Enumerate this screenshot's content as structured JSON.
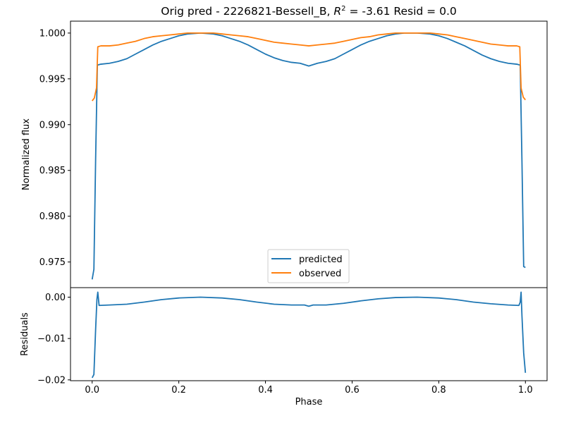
{
  "chart_data": {
    "type": "line",
    "title": "Orig pred - 2226821-Bessell_B, R² = -3.61 Resid = 0.0",
    "title_parts": {
      "prefix": "Orig pred - 2226821-Bessell_B, ",
      "r": "R",
      "sup": "2",
      "suffix": " = -3.61 Resid = 0.0"
    },
    "xlabel": "Phase",
    "xlim": [
      -0.05,
      1.05
    ],
    "x_ticks": [
      "0.0",
      "0.2",
      "0.4",
      "0.6",
      "0.8",
      "1.0"
    ],
    "grid": false,
    "legend_position": "lower center",
    "panels": [
      {
        "name": "flux",
        "ylabel": "Normalized flux",
        "ylim": [
          0.9722,
          1.0013
        ],
        "y_ticks": [
          "0.975",
          "0.980",
          "0.985",
          "0.990",
          "0.995",
          "1.000"
        ],
        "series": [
          {
            "name": "predicted",
            "color": "#1f77b4",
            "points": [
              [
                0.0,
                0.9731
              ],
              [
                0.004,
                0.9742
              ],
              [
                0.008,
                0.9862
              ],
              [
                0.012,
                0.9965
              ],
              [
                0.02,
                0.9966
              ],
              [
                0.04,
                0.9967
              ],
              [
                0.06,
                0.9969
              ],
              [
                0.08,
                0.9972
              ],
              [
                0.1,
                0.9977
              ],
              [
                0.12,
                0.9982
              ],
              [
                0.14,
                0.9987
              ],
              [
                0.16,
                0.9991
              ],
              [
                0.18,
                0.9994
              ],
              [
                0.2,
                0.9997
              ],
              [
                0.22,
                0.9999
              ],
              [
                0.25,
                1.0
              ],
              [
                0.28,
                0.9999
              ],
              [
                0.3,
                0.9997
              ],
              [
                0.32,
                0.9994
              ],
              [
                0.34,
                0.9991
              ],
              [
                0.36,
                0.9987
              ],
              [
                0.38,
                0.9982
              ],
              [
                0.4,
                0.9977
              ],
              [
                0.42,
                0.9973
              ],
              [
                0.44,
                0.997
              ],
              [
                0.46,
                0.9968
              ],
              [
                0.48,
                0.9967
              ],
              [
                0.5,
                0.9964
              ],
              [
                0.52,
                0.9967
              ],
              [
                0.54,
                0.9969
              ],
              [
                0.56,
                0.9972
              ],
              [
                0.58,
                0.9977
              ],
              [
                0.6,
                0.9982
              ],
              [
                0.62,
                0.9987
              ],
              [
                0.64,
                0.9991
              ],
              [
                0.66,
                0.9994
              ],
              [
                0.68,
                0.9997
              ],
              [
                0.7,
                0.9999
              ],
              [
                0.72,
                1.0
              ],
              [
                0.75,
                1.0
              ],
              [
                0.78,
                0.9999
              ],
              [
                0.8,
                0.9997
              ],
              [
                0.82,
                0.9994
              ],
              [
                0.84,
                0.999
              ],
              [
                0.86,
                0.9986
              ],
              [
                0.88,
                0.9981
              ],
              [
                0.9,
                0.9976
              ],
              [
                0.92,
                0.9972
              ],
              [
                0.94,
                0.9969
              ],
              [
                0.96,
                0.9967
              ],
              [
                0.98,
                0.9966
              ],
              [
                0.988,
                0.9965
              ],
              [
                0.992,
                0.986
              ],
              [
                0.996,
                0.9745
              ],
              [
                1.0,
                0.9744
              ]
            ]
          },
          {
            "name": "observed",
            "color": "#ff7f0e",
            "points": [
              [
                0.0,
                0.9926
              ],
              [
                0.005,
                0.9929
              ],
              [
                0.01,
                0.994
              ],
              [
                0.013,
                0.9985
              ],
              [
                0.02,
                0.9986
              ],
              [
                0.04,
                0.9986
              ],
              [
                0.06,
                0.9987
              ],
              [
                0.08,
                0.9989
              ],
              [
                0.1,
                0.9991
              ],
              [
                0.12,
                0.9994
              ],
              [
                0.14,
                0.9996
              ],
              [
                0.16,
                0.9997
              ],
              [
                0.18,
                0.9998
              ],
              [
                0.2,
                0.9999
              ],
              [
                0.22,
                1.0
              ],
              [
                0.25,
                1.0
              ],
              [
                0.28,
                1.0
              ],
              [
                0.3,
                0.9999
              ],
              [
                0.32,
                0.9998
              ],
              [
                0.34,
                0.9997
              ],
              [
                0.36,
                0.9996
              ],
              [
                0.38,
                0.9994
              ],
              [
                0.4,
                0.9992
              ],
              [
                0.42,
                0.999
              ],
              [
                0.44,
                0.9989
              ],
              [
                0.46,
                0.9988
              ],
              [
                0.48,
                0.9987
              ],
              [
                0.5,
                0.9986
              ],
              [
                0.52,
                0.9987
              ],
              [
                0.54,
                0.9988
              ],
              [
                0.56,
                0.9989
              ],
              [
                0.58,
                0.9991
              ],
              [
                0.6,
                0.9993
              ],
              [
                0.62,
                0.9995
              ],
              [
                0.64,
                0.9996
              ],
              [
                0.66,
                0.9998
              ],
              [
                0.68,
                0.9999
              ],
              [
                0.7,
                1.0
              ],
              [
                0.72,
                1.0
              ],
              [
                0.75,
                1.0
              ],
              [
                0.78,
                1.0
              ],
              [
                0.8,
                0.9999
              ],
              [
                0.82,
                0.9998
              ],
              [
                0.84,
                0.9996
              ],
              [
                0.86,
                0.9994
              ],
              [
                0.88,
                0.9992
              ],
              [
                0.9,
                0.999
              ],
              [
                0.92,
                0.9988
              ],
              [
                0.94,
                0.9987
              ],
              [
                0.96,
                0.9986
              ],
              [
                0.98,
                0.9986
              ],
              [
                0.987,
                0.9985
              ],
              [
                0.99,
                0.994
              ],
              [
                0.995,
                0.993
              ],
              [
                1.0,
                0.9927
              ]
            ]
          }
        ]
      },
      {
        "name": "residuals",
        "ylabel": "Residuals",
        "ylim": [
          -0.0202,
          0.0023
        ],
        "y_ticks": [
          "0.00",
          "−0.01",
          "−0.02"
        ],
        "y_tick_values": [
          0.0,
          -0.01,
          -0.02
        ],
        "series": [
          {
            "name": "",
            "color": "#1f77b4",
            "points": [
              [
                0.0,
                -0.0195
              ],
              [
                0.004,
                -0.0187
              ],
              [
                0.008,
                -0.0078
              ],
              [
                0.011,
                -0.0005
              ],
              [
                0.013,
                0.0012
              ],
              [
                0.016,
                -0.002
              ],
              [
                0.04,
                -0.0019
              ],
              [
                0.08,
                -0.0017
              ],
              [
                0.12,
                -0.0012
              ],
              [
                0.16,
                -0.0006
              ],
              [
                0.2,
                -0.0002
              ],
              [
                0.25,
                0.0
              ],
              [
                0.3,
                -0.0002
              ],
              [
                0.34,
                -0.0006
              ],
              [
                0.38,
                -0.0012
              ],
              [
                0.42,
                -0.0017
              ],
              [
                0.46,
                -0.0019
              ],
              [
                0.49,
                -0.0019
              ],
              [
                0.5,
                -0.0022
              ],
              [
                0.51,
                -0.0019
              ],
              [
                0.54,
                -0.0019
              ],
              [
                0.58,
                -0.0015
              ],
              [
                0.62,
                -0.0009
              ],
              [
                0.66,
                -0.0004
              ],
              [
                0.7,
                -0.0001
              ],
              [
                0.75,
                0.0
              ],
              [
                0.8,
                -0.0002
              ],
              [
                0.84,
                -0.0006
              ],
              [
                0.88,
                -0.0012
              ],
              [
                0.92,
                -0.0016
              ],
              [
                0.96,
                -0.0019
              ],
              [
                0.985,
                -0.002
              ],
              [
                0.988,
                -0.0012
              ],
              [
                0.99,
                0.0012
              ],
              [
                0.992,
                -0.0045
              ],
              [
                0.996,
                -0.0135
              ],
              [
                1.0,
                -0.0183
              ]
            ]
          }
        ]
      }
    ],
    "legend": {
      "entries": [
        {
          "label": "predicted",
          "color": "#1f77b4"
        },
        {
          "label": "observed",
          "color": "#ff7f0e"
        }
      ]
    }
  }
}
